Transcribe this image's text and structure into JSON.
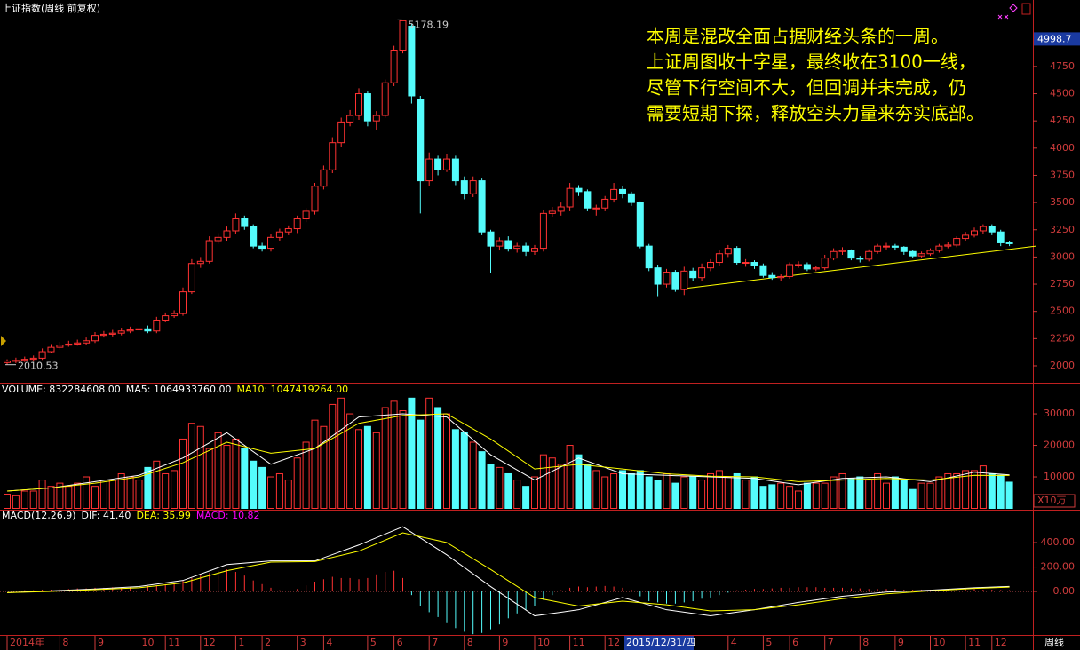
{
  "header": {
    "title": "上证指数(周线 前复权)"
  },
  "annotation": [
    "本周是混改全面占据财经头条的一周。",
    "上证周图收十字星，最终收在3100一线，",
    "尽管下行空间不大，但回调并未完成，仍",
    "需要短期下探，释放空头力量来夯实底部。"
  ],
  "chart_data": [
    {
      "type": "candlestick",
      "up_color": "#ff3232",
      "down_color": "#54fcfc",
      "categories": [
        "2014年",
        null,
        null,
        null,
        null,
        null,
        "8",
        null,
        null,
        null,
        "9",
        null,
        null,
        null,
        null,
        "10",
        null,
        null,
        "11",
        null,
        null,
        null,
        "12",
        null,
        null,
        null,
        "1",
        null,
        null,
        "2",
        null,
        null,
        null,
        "3",
        null,
        null,
        "4",
        null,
        null,
        null,
        null,
        "5",
        null,
        null,
        "6",
        null,
        null,
        null,
        "7",
        null,
        null,
        null,
        "8",
        null,
        null,
        null,
        "9",
        null,
        null,
        null,
        "10",
        null,
        null,
        null,
        "11",
        null,
        null,
        null,
        "12",
        null,
        null,
        null,
        null,
        null,
        null,
        null,
        null,
        null,
        null,
        null,
        null,
        null,
        "4",
        null,
        null,
        null,
        "5",
        null,
        null,
        "6",
        null,
        null,
        null,
        "7",
        null,
        null,
        null,
        "8",
        null,
        null,
        null,
        "9",
        null,
        null,
        null,
        "10",
        null,
        null,
        null,
        "11",
        null,
        null,
        "12",
        null,
        null
      ],
      "open": [
        2030,
        2045,
        2050,
        2060,
        2070,
        2130,
        2170,
        2190,
        2200,
        2210,
        2230,
        2280,
        2290,
        2300,
        2320,
        2330,
        2340,
        2320,
        2420,
        2460,
        2480,
        2680,
        2940,
        2960,
        3150,
        3180,
        3240,
        3350,
        3280,
        3100,
        3080,
        3180,
        3230,
        3260,
        3350,
        3420,
        3650,
        3800,
        4050,
        4240,
        4300,
        4500,
        4250,
        4300,
        4600,
        4900,
        5120,
        4450,
        3700,
        3900,
        3800,
        3900,
        3700,
        3580,
        3700,
        3230,
        3100,
        3150,
        3080,
        3100,
        3050,
        3080,
        3400,
        3420,
        3460,
        3630,
        3600,
        3450,
        3450,
        3530,
        3620,
        3580,
        3500,
        3100,
        2900,
        2750,
        2860,
        2700,
        2870,
        2810,
        2900,
        2950,
        3030,
        3080,
        2950,
        2950,
        2920,
        2830,
        2810,
        2820,
        2930,
        2930,
        2890,
        2900,
        2990,
        3050,
        3060,
        2990,
        2980,
        3050,
        3100,
        3100,
        3090,
        3050,
        3010,
        3030,
        3060,
        3100,
        3110,
        3170,
        3200,
        3240,
        3280,
        3230,
        3130
      ],
      "high": [
        2060,
        2075,
        2085,
        2095,
        2160,
        2200,
        2220,
        2230,
        2240,
        2260,
        2310,
        2320,
        2330,
        2350,
        2360,
        2370,
        2370,
        2450,
        2490,
        2510,
        2720,
        2980,
        3000,
        3190,
        3220,
        3280,
        3400,
        3380,
        3300,
        3130,
        3210,
        3260,
        3290,
        3380,
        3450,
        3680,
        3840,
        4100,
        4280,
        4350,
        4550,
        4520,
        4340,
        4630,
        4940,
        5178.19,
        5140,
        4480,
        3960,
        3930,
        3950,
        3930,
        3740,
        3740,
        3720,
        3250,
        3180,
        3190,
        3130,
        3130,
        3110,
        3430,
        3460,
        3500,
        3680,
        3660,
        3620,
        3480,
        3560,
        3680,
        3650,
        3600,
        3510,
        3120,
        2930,
        2890,
        2880,
        2910,
        2900,
        2940,
        2980,
        3060,
        3110,
        3100,
        2980,
        2970,
        2940,
        2860,
        2840,
        2950,
        2960,
        2950,
        2920,
        3020,
        3080,
        3090,
        3070,
        3010,
        3070,
        3120,
        3130,
        3120,
        3100,
        3060,
        3050,
        3080,
        3120,
        3140,
        3190,
        3230,
        3270,
        3300,
        3300,
        3250,
        3150
      ],
      "low": [
        2010.53,
        2025,
        2035,
        2045,
        2055,
        2115,
        2150,
        2175,
        2185,
        2195,
        2210,
        2260,
        2270,
        2280,
        2300,
        2310,
        2300,
        2300,
        2400,
        2440,
        2460,
        2660,
        2900,
        2940,
        3120,
        3150,
        3210,
        3250,
        3080,
        3050,
        3050,
        3150,
        3200,
        3220,
        3320,
        3390,
        3620,
        3770,
        4010,
        4200,
        4260,
        4200,
        4170,
        4280,
        4570,
        4870,
        4410,
        3400,
        3650,
        3750,
        3780,
        3660,
        3530,
        3550,
        3200,
        2850,
        3060,
        3050,
        3040,
        3010,
        3020,
        3050,
        3370,
        3380,
        3420,
        3560,
        3420,
        3380,
        3420,
        3500,
        3540,
        3470,
        3080,
        2870,
        2640,
        2720,
        2680,
        2650,
        2780,
        2780,
        2870,
        2920,
        3000,
        2930,
        2910,
        2890,
        2810,
        2790,
        2780,
        2800,
        2900,
        2870,
        2870,
        2880,
        2970,
        3020,
        2970,
        2950,
        2960,
        3030,
        3070,
        3060,
        3020,
        2990,
        2990,
        3010,
        3040,
        3080,
        3090,
        3150,
        3180,
        3210,
        3200,
        3100,
        3100
      ],
      "close": [
        2045,
        2050,
        2060,
        2070,
        2130,
        2170,
        2190,
        2200,
        2210,
        2230,
        2280,
        2290,
        2300,
        2320,
        2330,
        2340,
        2320,
        2420,
        2460,
        2480,
        2680,
        2940,
        2960,
        3150,
        3180,
        3240,
        3350,
        3280,
        3100,
        3080,
        3180,
        3230,
        3260,
        3350,
        3420,
        3650,
        3800,
        4050,
        4240,
        4300,
        4500,
        4250,
        4300,
        4600,
        4900,
        5170,
        4480,
        3700,
        3900,
        3800,
        3900,
        3700,
        3580,
        3700,
        3230,
        3100,
        3150,
        3080,
        3100,
        3050,
        3080,
        3400,
        3420,
        3460,
        3630,
        3600,
        3450,
        3450,
        3530,
        3620,
        3580,
        3500,
        3100,
        2900,
        2750,
        2860,
        2700,
        2870,
        2810,
        2900,
        2950,
        3030,
        3080,
        2950,
        2950,
        2920,
        2830,
        2810,
        2820,
        2930,
        2930,
        2890,
        2900,
        2990,
        3050,
        3060,
        2990,
        2980,
        3050,
        3100,
        3100,
        3090,
        3050,
        3010,
        3030,
        3060,
        3100,
        3110,
        3170,
        3200,
        3240,
        3280,
        3230,
        3130,
        3125
      ],
      "ylim": [
        1853,
        5214
      ],
      "yticks": [
        2000,
        2250,
        2500,
        2750,
        3000,
        3250,
        3500,
        3750,
        4000,
        4250,
        4500,
        4750
      ],
      "max_label": 5178.19,
      "min_label": 2010.53,
      "cursor_value": 4998.7,
      "cursor_date": "2015/12/31/四",
      "period": "周线",
      "trendline": {
        "x": [
          77,
          117
        ],
        "values": [
          2710,
          3100
        ],
        "color": "#ffff00"
      }
    },
    {
      "type": "bar",
      "header": [
        "VOLUME: 832284608.00",
        "MA5: 1064933760.00",
        "MA10: 1047419264.00"
      ],
      "header_colors": [
        "#ffffff",
        "#ffffff",
        "#ffff00"
      ],
      "unit": "X10万",
      "values": [
        4500,
        4000,
        5500,
        5500,
        9000,
        7000,
        8000,
        7000,
        8000,
        10000,
        7000,
        9000,
        9000,
        11000,
        10000,
        9000,
        13000,
        15000,
        11000,
        12000,
        22000,
        27000,
        26000,
        19000,
        24000,
        20000,
        22000,
        19000,
        15000,
        13000,
        10000,
        11000,
        9000,
        16000,
        21000,
        28000,
        26000,
        33000,
        35000,
        30000,
        25000,
        26000,
        24000,
        32000,
        34000,
        31000,
        35000,
        28000,
        35000,
        32000,
        30000,
        25000,
        24000,
        21000,
        18000,
        14000,
        13000,
        11000,
        9000,
        7000,
        10000,
        17000,
        16000,
        14000,
        20000,
        17000,
        14000,
        12000,
        10000,
        11000,
        12000,
        11000,
        12000,
        10000,
        9000,
        11000,
        8000,
        10000,
        10000,
        9000,
        11000,
        12000,
        10000,
        11000,
        9000,
        10000,
        7000,
        7500,
        8000,
        7000,
        5500,
        8000,
        8000,
        8000,
        10000,
        11000,
        9500,
        10000,
        9000,
        11000,
        8000,
        10000,
        9000,
        6000,
        8000,
        8000,
        10000,
        11000,
        11000,
        12000,
        12000,
        13500,
        11000,
        10500,
        8322.84608
      ],
      "series": [
        {
          "color": "#ffffff",
          "x": [
            0,
            5,
            10,
            15,
            20,
            25,
            30,
            35,
            40,
            45,
            50,
            55,
            60,
            65,
            70,
            75,
            80,
            85,
            90,
            95,
            100,
            105,
            110,
            114
          ],
          "values": [
            5500,
            6500,
            8500,
            10500,
            16000,
            24000,
            14000,
            19000,
            29000,
            30000,
            29000,
            17000,
            9000,
            16000,
            11000,
            10500,
            10000,
            9500,
            7500,
            9500,
            10000,
            8500,
            11500,
            10649.3376
          ]
        },
        {
          "color": "#ffff00",
          "x": [
            0,
            5,
            10,
            15,
            20,
            25,
            30,
            35,
            40,
            45,
            50,
            55,
            60,
            65,
            70,
            75,
            80,
            85,
            90,
            95,
            100,
            105,
            110,
            114
          ],
          "values": [
            5500,
            6500,
            8000,
            10000,
            14500,
            21000,
            17500,
            19000,
            27000,
            29500,
            30000,
            22000,
            12500,
            14000,
            12500,
            11000,
            10200,
            10000,
            8500,
            9000,
            9500,
            9000,
            10500,
            10474.19264
          ]
        }
      ],
      "ylim": [
        0,
        39600
      ],
      "yticks": [
        10000,
        20000,
        30000
      ]
    },
    {
      "type": "macd",
      "header": [
        "MACD(12,26,9)",
        "DIF: 41.40",
        "DEA: 35.99",
        "MACD: 10.82"
      ],
      "header_colors": [
        "#ffffff",
        "#ffffff",
        "#ffff00",
        "#ff00ff"
      ],
      "histogram": [
        5,
        5,
        10,
        10,
        15,
        15,
        20,
        20,
        25,
        25,
        30,
        30,
        35,
        35,
        40,
        40,
        45,
        50,
        60,
        70,
        90,
        110,
        130,
        150,
        170,
        180,
        160,
        130,
        90,
        60,
        30,
        10,
        5,
        20,
        50,
        80,
        100,
        120,
        110,
        110,
        100,
        110,
        140,
        160,
        170,
        110,
        -30,
        -120,
        -170,
        -210,
        -260,
        -300,
        -330,
        -350,
        -340,
        -310,
        -270,
        -220,
        -180,
        -150,
        -120,
        -70,
        -30,
        10,
        30,
        40,
        35,
        40,
        45,
        40,
        30,
        15,
        -40,
        -80,
        -90,
        -100,
        -100,
        -90,
        -80,
        -60,
        -50,
        -30,
        -10,
        10,
        15,
        20,
        20,
        25,
        30,
        30,
        35,
        35,
        35,
        30,
        30,
        30,
        25,
        25,
        20,
        20,
        20,
        20,
        15,
        15,
        15,
        15,
        15,
        15,
        20,
        20,
        20,
        15,
        15,
        12,
        10.82
      ],
      "series": [
        {
          "color": "#ffffff",
          "x": [
            0,
            5,
            10,
            15,
            20,
            25,
            30,
            35,
            40,
            45,
            50,
            55,
            60,
            65,
            70,
            75,
            80,
            85,
            90,
            95,
            100,
            105,
            110,
            114
          ],
          "values": [
            -10,
            5,
            20,
            40,
            90,
            220,
            250,
            250,
            380,
            530,
            300,
            40,
            -200,
            -150,
            -50,
            -150,
            -200,
            -150,
            -90,
            -40,
            -5,
            10,
            30,
            41.4
          ]
        },
        {
          "color": "#ffff00",
          "x": [
            0,
            5,
            10,
            15,
            20,
            25,
            30,
            35,
            40,
            45,
            50,
            55,
            60,
            65,
            70,
            75,
            80,
            85,
            90,
            95,
            100,
            105,
            110,
            114
          ],
          "values": [
            -10,
            0,
            15,
            30,
            70,
            170,
            240,
            245,
            330,
            480,
            400,
            180,
            -50,
            -120,
            -80,
            -110,
            -160,
            -150,
            -110,
            -60,
            -20,
            5,
            25,
            35.99
          ]
        }
      ],
      "ylim": [
        -356,
        662
      ],
      "yticks": [
        {
          "value": 0,
          "label": "0.00"
        },
        {
          "value": 200,
          "label": "200.00"
        },
        {
          "value": 400,
          "label": "400.00"
        }
      ]
    }
  ]
}
